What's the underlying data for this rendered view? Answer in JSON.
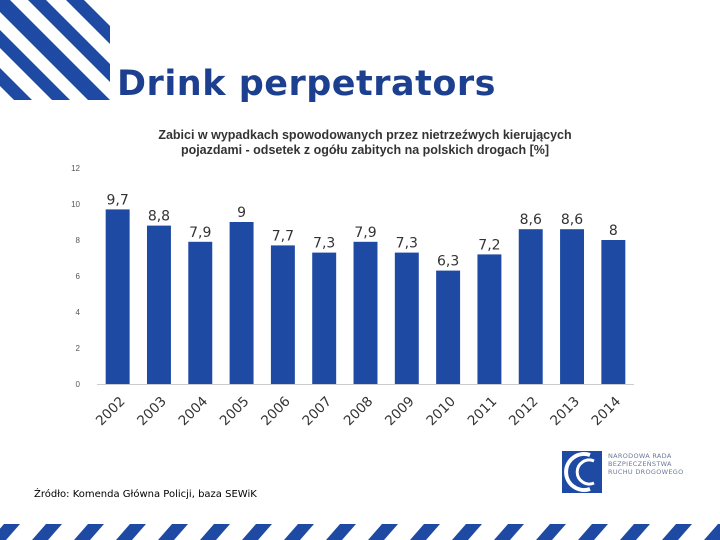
{
  "slide": {
    "title": "Drink perpetrators",
    "source": "Źródło: Komenda Główna Policji, baza SEWiK",
    "logo_lines": [
      "NARODOWA RADA",
      "BEZPIECZEŃSTWA",
      "RUCHU DROGOWEGO"
    ]
  },
  "colors": {
    "title": "#1d3f8f",
    "bar": "#1f4aa3",
    "stripe": "#1f4aa3",
    "axis": "#cccccc"
  },
  "chart_data": {
    "type": "bar",
    "title_lines": [
      "Zabici w wypadkach spowodowanych przez nietrzeźwych kierujących",
      "pojazdami - odsetek z ogółu zabitych na polskich drogach [%]"
    ],
    "categories": [
      "2002",
      "2003",
      "2004",
      "2005",
      "2006",
      "2007",
      "2008",
      "2009",
      "2010",
      "2011",
      "2012",
      "2013",
      "2014"
    ],
    "values": [
      9.7,
      8.8,
      7.9,
      9,
      7.7,
      7.3,
      7.9,
      7.3,
      6.3,
      7.2,
      8.6,
      8.6,
      8
    ],
    "value_labels": [
      "9,7",
      "8,8",
      "7,9",
      "9",
      "7,7",
      "7,3",
      "7,9",
      "7,3",
      "6,3",
      "7,2",
      "8,6",
      "8,6",
      "8"
    ],
    "yticks": [
      "0",
      "2",
      "4",
      "6",
      "8",
      "10",
      "12"
    ],
    "ylim": [
      0,
      12
    ],
    "xlabel": "",
    "ylabel": ""
  }
}
